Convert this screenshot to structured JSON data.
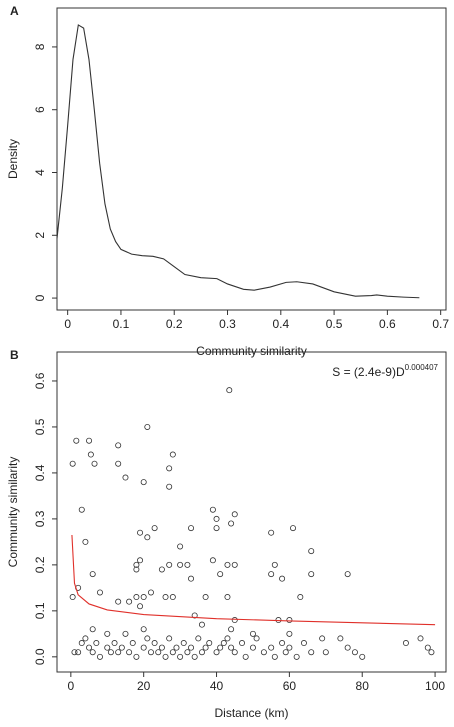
{
  "chart_data": [
    {
      "type": "line",
      "title": "A",
      "xlabel": "Community similarity",
      "ylabel": "Density",
      "x": [
        -0.02,
        -0.01,
        0,
        0.01,
        0.02,
        0.03,
        0.04,
        0.05,
        0.06,
        0.07,
        0.08,
        0.09,
        0.1,
        0.12,
        0.14,
        0.16,
        0.18,
        0.2,
        0.22,
        0.25,
        0.28,
        0.3,
        0.33,
        0.35,
        0.38,
        0.41,
        0.43,
        0.46,
        0.5,
        0.54,
        0.57,
        0.58,
        0.6,
        0.63,
        0.66
      ],
      "values": [
        1.9,
        3.5,
        5.5,
        7.6,
        8.7,
        8.6,
        7.6,
        6.0,
        4.3,
        3.0,
        2.2,
        1.8,
        1.55,
        1.4,
        1.35,
        1.33,
        1.25,
        1.0,
        0.75,
        0.65,
        0.62,
        0.45,
        0.28,
        0.25,
        0.35,
        0.5,
        0.52,
        0.45,
        0.2,
        0.06,
        0.08,
        0.1,
        0.06,
        0.03,
        0.01
      ],
      "color": "#333333",
      "xlim": [
        -0.02,
        0.71
      ],
      "ylim": [
        -0.38,
        9.24
      ],
      "xticks": [
        0,
        0.1,
        0.2,
        0.3,
        0.4,
        0.5,
        0.6,
        0.7
      ],
      "yticks": [
        0,
        2,
        4,
        6,
        8
      ]
    },
    {
      "type": "scatter",
      "title": "B",
      "xlabel": "Distance (km)",
      "ylabel": "Community similarity",
      "annotation": "S = (2.4e-9)D",
      "annotation_superscript": "0.000407",
      "xlim": [
        -3.8,
        103
      ],
      "ylim": [
        -0.033,
        0.663
      ],
      "xticks": [
        0,
        20,
        40,
        60,
        80,
        100
      ],
      "yticks": [
        {
          "value": 0,
          "label": "0.0"
        },
        0.1,
        0.2,
        0.3,
        0.4,
        0.5,
        0.6
      ],
      "series": [
        {
          "type": "scatter",
          "color": "#333333",
          "x": [
            0.5,
            1.5,
            5,
            5.5,
            6.5,
            13,
            13,
            15,
            21,
            20,
            28,
            27,
            27,
            43.5,
            3,
            4,
            19,
            21,
            23,
            30,
            33,
            39,
            40,
            40,
            45,
            44,
            55,
            61,
            66,
            6,
            18,
            19,
            18,
            25,
            27,
            30,
            32,
            33,
            39,
            41,
            43,
            45,
            55,
            56,
            58,
            63,
            66,
            76,
            0.5,
            2,
            8,
            13,
            16,
            18,
            19,
            20,
            22,
            26,
            28,
            34,
            37,
            43,
            45,
            50,
            60,
            57,
            1,
            2,
            3,
            4,
            5,
            6,
            7,
            8,
            10,
            11,
            12,
            13,
            14,
            15,
            16,
            17,
            18,
            20,
            21,
            22,
            23,
            24,
            25,
            26,
            27,
            28,
            29,
            30,
            31,
            32,
            33,
            34,
            35,
            36,
            37,
            38,
            40,
            41,
            42,
            43,
            44,
            45,
            47,
            48,
            50,
            51,
            53,
            55,
            56,
            58,
            59,
            60,
            62,
            64,
            66,
            69,
            70,
            74,
            76,
            78,
            80,
            92,
            96,
            98,
            99,
            6,
            10,
            20,
            36,
            44,
            60
          ],
          "values": [
            0.42,
            0.47,
            0.47,
            0.44,
            0.42,
            0.46,
            0.42,
            0.39,
            0.5,
            0.38,
            0.44,
            0.41,
            0.37,
            0.58,
            0.32,
            0.25,
            0.27,
            0.26,
            0.28,
            0.24,
            0.28,
            0.32,
            0.3,
            0.28,
            0.31,
            0.29,
            0.27,
            0.28,
            0.23,
            0.18,
            0.2,
            0.21,
            0.19,
            0.19,
            0.2,
            0.2,
            0.2,
            0.17,
            0.21,
            0.18,
            0.2,
            0.2,
            0.18,
            0.2,
            0.17,
            0.13,
            0.18,
            0.18,
            0.13,
            0.15,
            0.14,
            0.12,
            0.12,
            0.13,
            0.11,
            0.13,
            0.14,
            0.13,
            0.13,
            0.09,
            0.13,
            0.13,
            0.08,
            0.05,
            0.08,
            0.08,
            0.01,
            0.01,
            0.03,
            0.04,
            0.02,
            0.01,
            0.03,
            0,
            0.02,
            0.01,
            0.03,
            0.01,
            0.02,
            0.05,
            0.01,
            0.03,
            0,
            0.02,
            0.04,
            0.01,
            0.03,
            0.01,
            0.02,
            0,
            0.04,
            0.01,
            0.02,
            0,
            0.03,
            0.01,
            0.02,
            0,
            0.04,
            0.01,
            0.02,
            0.03,
            0.01,
            0.02,
            0.03,
            0.04,
            0.02,
            0.01,
            0.03,
            0,
            0.02,
            0.04,
            0.01,
            0.02,
            0,
            0.03,
            0.01,
            0.02,
            0,
            0.03,
            0.01,
            0.04,
            0.01,
            0.04,
            0.02,
            0.01,
            0,
            0.03,
            0.04,
            0.02,
            0.01,
            0.06,
            0.05,
            0.06,
            0.07,
            0.06,
            0.05
          ]
        },
        {
          "type": "line",
          "color": "#e0302a",
          "x": [
            0.3,
            1,
            2,
            5,
            10,
            20,
            40,
            60,
            80,
            100
          ],
          "values": [
            0.265,
            0.16,
            0.135,
            0.115,
            0.102,
            0.092,
            0.083,
            0.078,
            0.074,
            0.07
          ]
        }
      ]
    }
  ]
}
